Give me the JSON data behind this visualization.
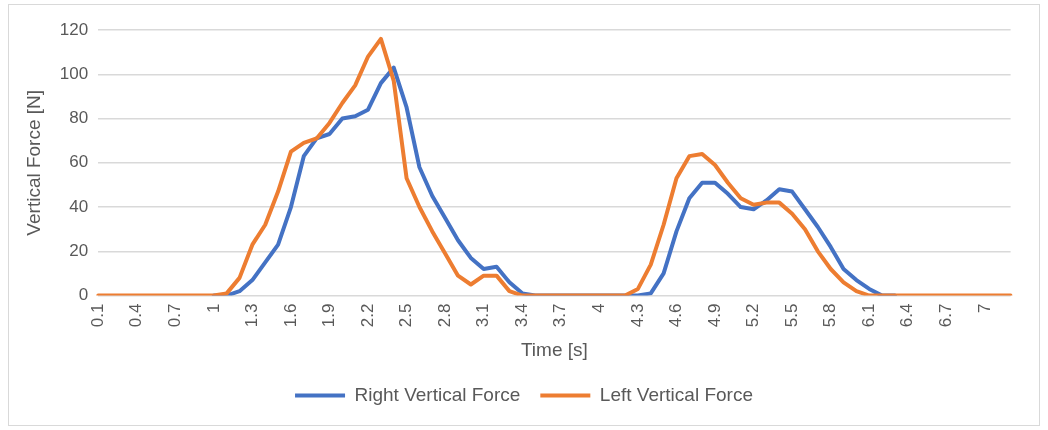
{
  "chart_data": {
    "type": "line",
    "xlabel": "Time [s]",
    "ylabel": "Vertical Force [N]",
    "categories": [
      "0.1",
      null,
      null,
      "0.4",
      null,
      null,
      "0.7",
      null,
      null,
      "1",
      null,
      null,
      "1.3",
      null,
      null,
      "1.6",
      null,
      null,
      "1.9",
      null,
      null,
      "2.2",
      null,
      null,
      "2.5",
      null,
      null,
      "2.8",
      null,
      null,
      "3.1",
      null,
      null,
      "3.4",
      null,
      null,
      "3.7",
      null,
      null,
      "4",
      null,
      null,
      "4.3",
      null,
      null,
      "4.6",
      null,
      null,
      "4.9",
      null,
      null,
      "5.2",
      null,
      null,
      "5.5",
      null,
      null,
      "5.8",
      null,
      null,
      "6.1",
      null,
      null,
      "6.4",
      null,
      null,
      "6.7",
      null,
      null,
      "7",
      null,
      null
    ],
    "series": [
      {
        "name": "Right Vertical Force",
        "color": "#4472c4",
        "values": [
          null,
          null,
          null,
          null,
          null,
          null,
          null,
          null,
          null,
          0,
          0,
          2,
          7,
          15,
          23,
          40,
          63,
          71,
          73,
          80,
          81,
          84,
          96,
          103,
          85,
          58,
          45,
          35,
          25,
          17,
          12,
          13,
          6,
          1,
          0,
          0,
          0,
          0,
          0,
          0,
          0,
          0,
          0,
          1,
          10,
          29,
          44,
          51,
          51,
          46,
          40,
          39,
          43,
          48,
          47,
          39,
          31,
          22,
          12,
          7,
          3,
          0,
          0,
          null,
          null,
          null,
          null,
          null,
          null,
          null,
          null,
          null
        ]
      },
      {
        "name": "Left Vertical Force",
        "color": "#ed7d31",
        "values": [
          0,
          0,
          0,
          0,
          0,
          0,
          0,
          0,
          0,
          0,
          1,
          8,
          23,
          32,
          47,
          65,
          69,
          71,
          78,
          87,
          95,
          108,
          116,
          97,
          53,
          40,
          29,
          19,
          9,
          5,
          9,
          9,
          2,
          0,
          0,
          0,
          0,
          0,
          0,
          0,
          0,
          0,
          3,
          14,
          32,
          53,
          63,
          64,
          59,
          51,
          44,
          41,
          42,
          42,
          37,
          30,
          20,
          12,
          6,
          2,
          0,
          0,
          0,
          0,
          0,
          0,
          0,
          0,
          0,
          0,
          0,
          0
        ]
      }
    ],
    "ylim": [
      0,
      120
    ],
    "yticks": [
      0,
      20,
      40,
      60,
      80,
      100,
      120
    ],
    "grid": "y",
    "legend": "bottom",
    "marker": "none",
    "line_style": "solid"
  }
}
